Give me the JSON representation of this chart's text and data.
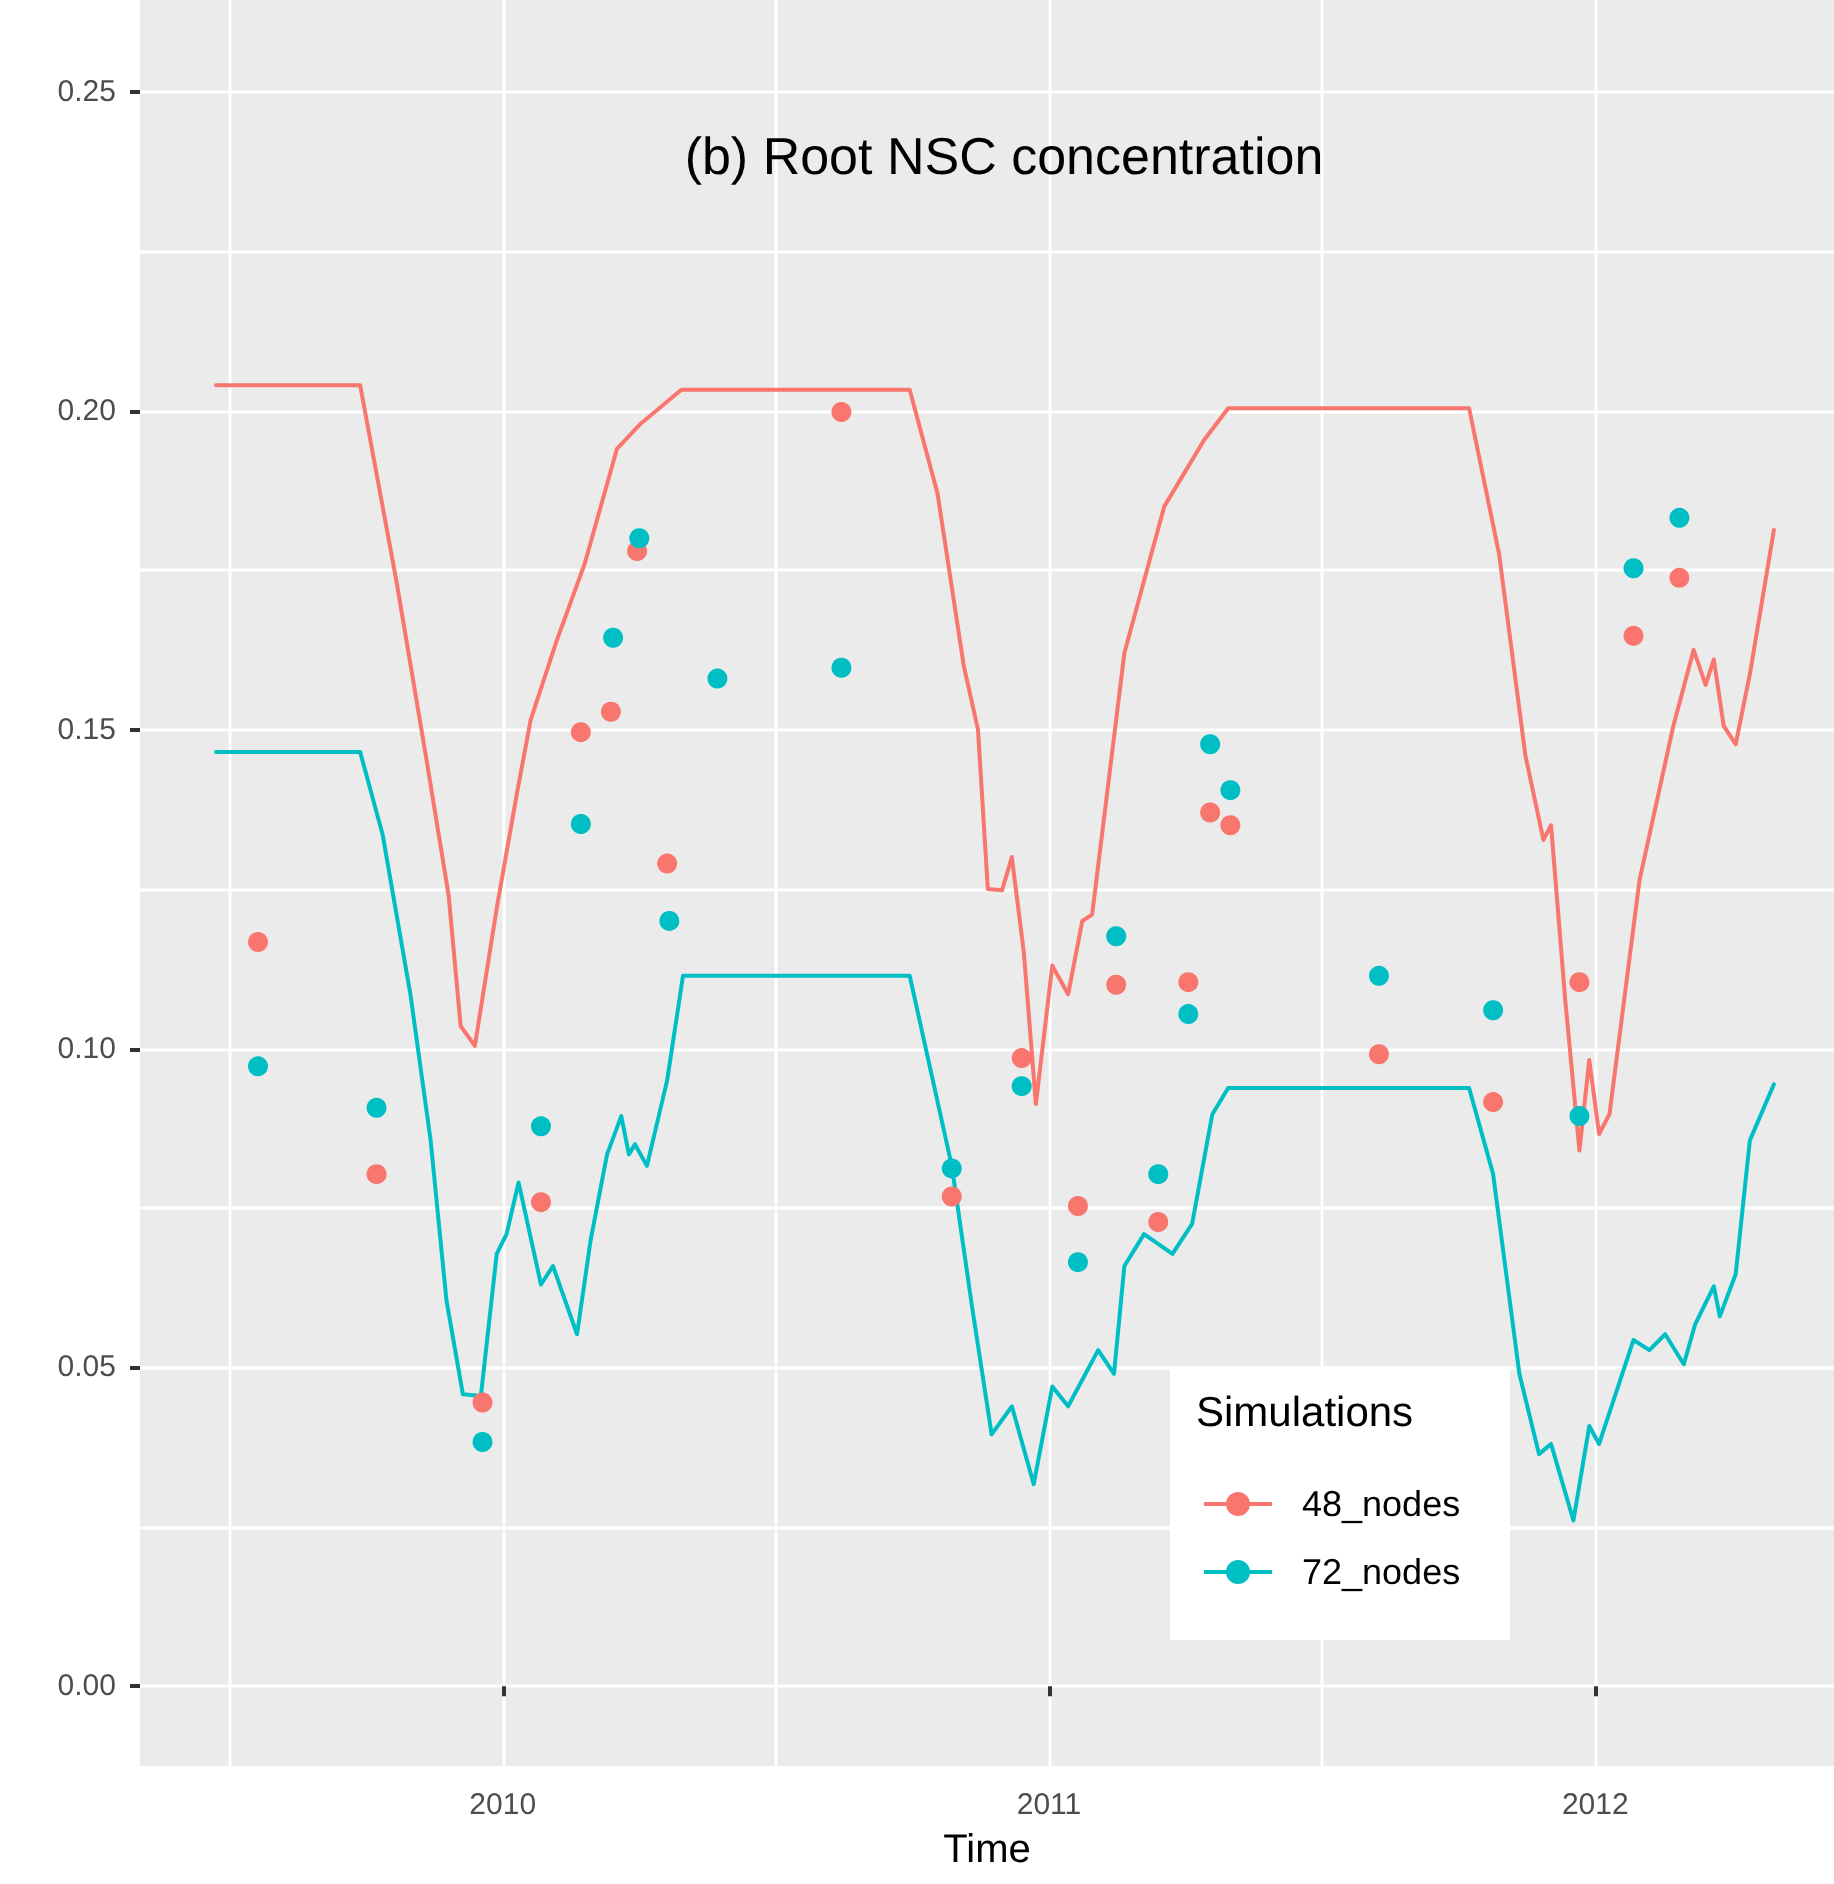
{
  "chart_data": {
    "type": "line",
    "title": "(b) Root NSC concentration",
    "xlabel": "Time",
    "legend_title": "Simulations",
    "legend": "bottom right",
    "grid": true,
    "xlim": [
      2009.336,
      2012.437
    ],
    "xticks": [
      {
        "value": 2009.5,
        "label": null
      },
      2010,
      {
        "value": 2010.5,
        "label": null
      },
      2011,
      {
        "value": 2011.5,
        "label": null
      },
      2012
    ],
    "ylim": [
      -0.0125,
      0.2644
    ],
    "yticks": [
      {
        "value": 0,
        "label": "0.00"
      },
      {
        "value": 0.025,
        "label": null
      },
      {
        "value": 0.05,
        "label": "0.05"
      },
      {
        "value": 0.075,
        "label": null
      },
      {
        "value": 0.1,
        "label": "0.10"
      },
      {
        "value": 0.125,
        "label": null
      },
      {
        "value": 0.15,
        "label": "0.15"
      },
      {
        "value": 0.175,
        "label": null
      },
      {
        "value": 0.2,
        "label": "0.20"
      },
      {
        "value": 0.225,
        "label": null
      },
      {
        "value": 0.25,
        "label": "0.25"
      }
    ],
    "series": [
      {
        "name": "48_nodes",
        "marker": "none",
        "line_style": "solid",
        "color": "#f8766d",
        "x": [
          2009.475,
          2009.739,
          2009.806,
          2009.861,
          2009.901,
          2009.923,
          2009.949,
          2009.989,
          2010.026,
          2010.051,
          2010.099,
          2010.15,
          2010.209,
          2010.253,
          2010.327,
          2010.745,
          2010.796,
          2010.844,
          2010.87,
          2010.888,
          2010.914,
          2010.932,
          2010.954,
          2010.976,
          2011.006,
          2011.035,
          2011.061,
          2011.079,
          2011.138,
          2011.211,
          2011.284,
          2011.328,
          2011.769,
          2011.824,
          2011.872,
          2011.905,
          2011.919,
          2011.945,
          2011.971,
          2011.989,
          2012.007,
          2012.026,
          2012.081,
          2012.143,
          2012.18,
          2012.202,
          2012.217,
          2012.235,
          2012.257,
          2012.283,
          2012.327
        ],
        "values": [
          0.204,
          0.204,
          0.173,
          0.145,
          0.124,
          0.1035,
          0.1004,
          0.122,
          0.14,
          0.1515,
          0.164,
          0.176,
          0.194,
          0.198,
          0.2033,
          0.2033,
          0.187,
          0.16,
          0.15,
          0.125,
          0.1248,
          0.13,
          0.115,
          0.0913,
          0.113,
          0.1085,
          0.12,
          0.121,
          0.162,
          0.185,
          0.1954,
          0.2004,
          0.2004,
          0.1775,
          0.146,
          0.1327,
          0.135,
          0.1076,
          0.084,
          0.0982,
          0.0866,
          0.0897,
          0.1264,
          0.1506,
          0.1625,
          0.157,
          0.161,
          0.1506,
          0.1477,
          0.1587,
          0.1813
        ]
      },
      {
        "type": "scatter",
        "marker": "circle",
        "color": "#f8766d",
        "x": [
          2009.552,
          2009.769,
          2009.963,
          2010.07,
          2010.143,
          2010.198,
          2010.246,
          2010.301,
          2010.393,
          2010.62,
          2010.822,
          2010.95,
          2011.053,
          2011.123,
          2011.2,
          2011.255,
          2011.295,
          2011.332,
          2011.604,
          2011.813,
          2011.971,
          2012.07,
          2012.154
        ],
        "values": [
          0.1167,
          0.0803,
          0.0445,
          0.0759,
          0.1496,
          0.1528,
          0.178,
          0.129,
          null,
          0.1998,
          0.0768,
          0.0985,
          0.0753,
          0.11,
          0.0728,
          0.1104,
          0.137,
          0.135,
          0.0991,
          0.0916,
          0.1104,
          0.1647,
          0.1738
        ]
      },
      {
        "name": "72_nodes",
        "marker": "none",
        "line_style": "solid",
        "color": "#00bfc4",
        "x": [
          2009.475,
          2009.739,
          2009.78,
          2009.831,
          2009.868,
          2009.897,
          2009.927,
          2009.96,
          2009.989,
          2010.007,
          2010.029,
          2010.07,
          2010.092,
          2010.136,
          2010.161,
          2010.191,
          2010.217,
          2010.231,
          2010.242,
          2010.264,
          2010.301,
          2010.33,
          2010.745,
          2010.822,
          2010.859,
          2010.895,
          2010.932,
          2010.972,
          2011.006,
          2011.035,
          2011.09,
          2011.119,
          2011.138,
          2011.174,
          2011.226,
          2011.262,
          2011.299,
          2011.328,
          2011.769,
          2011.813,
          2011.861,
          2011.897,
          2011.919,
          2011.96,
          2011.989,
          2012.007,
          2012.07,
          2012.099,
          2012.128,
          2012.162,
          2012.183,
          2012.217,
          2012.228,
          2012.257,
          2012.283,
          2012.327
        ],
        "values": [
          0.1465,
          0.1465,
          0.1336,
          0.1085,
          0.0856,
          0.0605,
          0.0458,
          0.0455,
          0.0678,
          0.0709,
          0.079,
          0.063,
          0.0659,
          0.0552,
          0.07,
          0.0834,
          0.0894,
          0.0834,
          0.085,
          0.0816,
          0.095,
          0.1114,
          0.1114,
          0.0816,
          0.0596,
          0.0395,
          0.0439,
          0.0317,
          0.047,
          0.0439,
          0.0527,
          0.049,
          0.0659,
          0.0709,
          0.0678,
          0.0725,
          0.0897,
          0.0938,
          0.0938,
          0.0803,
          0.049,
          0.0364,
          0.038,
          0.026,
          0.0408,
          0.038,
          0.0543,
          0.0527,
          0.0552,
          0.0505,
          0.0568,
          0.0627,
          0.058,
          0.0646,
          0.0856,
          0.0944
        ]
      },
      {
        "type": "scatter",
        "marker": "circle",
        "color": "#00bfc4",
        "x": [
          2009.552,
          2009.769,
          2009.963,
          2010.07,
          2010.143,
          2010.202,
          2010.25,
          2010.305,
          2010.393,
          2010.62,
          2010.822,
          2010.95,
          2011.053,
          2011.123,
          2011.2,
          2011.255,
          2011.295,
          2011.332,
          2011.604,
          2011.813,
          2011.971,
          2012.07,
          2012.154
        ],
        "values": [
          0.0972,
          0.0907,
          0.0383,
          0.0878,
          0.1352,
          0.1644,
          0.18,
          0.12,
          0.158,
          0.1597,
          0.0812,
          0.0941,
          0.0665,
          0.1176,
          0.0803,
          0.1054,
          0.1477,
          0.1405,
          0.1114,
          0.106,
          0.0894,
          0.1753,
          0.1832
        ]
      }
    ]
  }
}
